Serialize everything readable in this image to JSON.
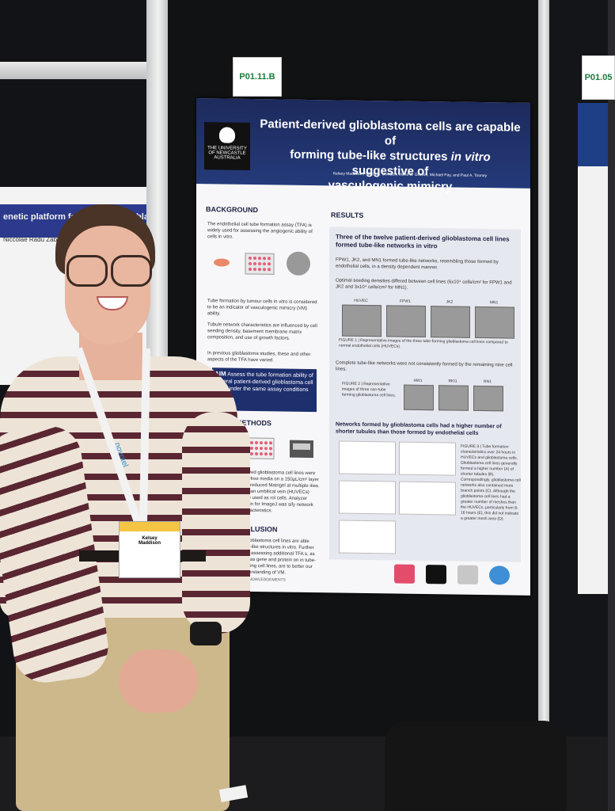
{
  "labels": {
    "main_poster_code": "P01.11.B",
    "right_poster_code": "P01.05"
  },
  "poster": {
    "title_line1": "Patient-derived glioblastoma cells are capable of",
    "title_line2_pre": "forming tube-like structures ",
    "title_line2_italic": "in vitro",
    "title_line2_post": " suggestive of",
    "title_line3": "vasculogenic mimicry",
    "authors": "Kelsey Maddison, Nikola A. Bowden, Moira C. Graves, Michael Fay, and Paul A. Tooney",
    "logo_text": "THE UNIVERSITY OF NEWCASTLE AUSTRALIA",
    "background": {
      "heading": "BACKGROUND",
      "p1": "The endothelial cell tube formation assay (TFA) is widely used for assessing the angiogenic ability of cells in vitro.",
      "p2": "Tube formation by tumour cells in vitro is considered to be an indicator of vasculogenic mimicry (VM) ability.",
      "p3": "Tubule network characteristics are influenced by cell seeding density, basement membrane matrix composition, and use of growth factors.",
      "p4": "In previous glioblastoma studies, these and other aspects of the TFA have varied."
    },
    "aim": {
      "label": "AIM",
      "text": "Assess the tube formation ability of several patient-derived glioblastoma cell lines under the same assay conditions"
    },
    "methods": {
      "heading": "METHODS",
      "text": "derived glioblastoma cell lines were rum-free media on a 150µL/cm² layer ctor-reduced Matrigel at multiple ities. Human umbilical vein (HUVECs) were used as rol cells. Analyzer plugin for ImageJ was sify network characteristics."
    },
    "conclusion": {
      "heading": "CLUSION",
      "text": "d glioblastoma cell lines are able tube-like structures in vitro. Further ents assessing additional TFA s, as well as gene and protein on in tube-forming cell lines, are to better our understanding of VM."
    },
    "acknowledgements": "ACKNOWLEDGEMENTS",
    "results": {
      "heading": "RESULTS",
      "sub1": "Three of the twelve patient-derived glioblastoma cell lines formed tube-like networks in vitro",
      "b1": "FPW1, JK2, and MN1 formed tube-like networks, resembling those formed by endothelial cells, in a density dependent manner.",
      "b2": "Optimal seeding densities differed between cell lines (6x10⁴ cells/cm² for FPW1 and JK2 and 3x10⁴ cells/cm² for MN1).",
      "fig1_labels": [
        "HUVEC",
        "FPW1",
        "JK2",
        "MN1"
      ],
      "fig1_caption": "FIGURE 1 | Representative images of the three tube-forming glioblastoma cell lines compared to normal endothelial cells (HUVECs).",
      "b3": "Complete tube-like networks were not consistently formed by the remaining nine cell lines.",
      "fig2_caption": "FIGURE 2 | Representative images of three non-tube forming glioblastoma cell lines.",
      "fig2_labels": [
        "HW1",
        "RKI1",
        "RN1"
      ],
      "sub2": "Networks formed by glioblastoma cells had a higher number of shorter tubules than those formed by endothelial cells",
      "fig3_caption": "FIGURE 3 | Tube formation characteristics over 24 hours in HUVECs and glioblastoma cells. Glioblastoma cell lines generally formed a higher number (A) of shorter tubules (B). Correspondingly, glioblastoma cell networks also contained more branch points (C). Although the glioblastoma cell lines had a greater number of meshes than the HUVECs, particularly from 8-16 hours (E), this did not indicate a greater mesh area (D)."
    }
  },
  "left_poster": {
    "title": "enetic platform for tching in glioblast",
    "sub": "Niccolae Radu Zabel, Seb"
  },
  "badge": {
    "name_line1": "Kelsey",
    "name_line2": "Maddison"
  },
  "lanyard_text": "novotel"
}
